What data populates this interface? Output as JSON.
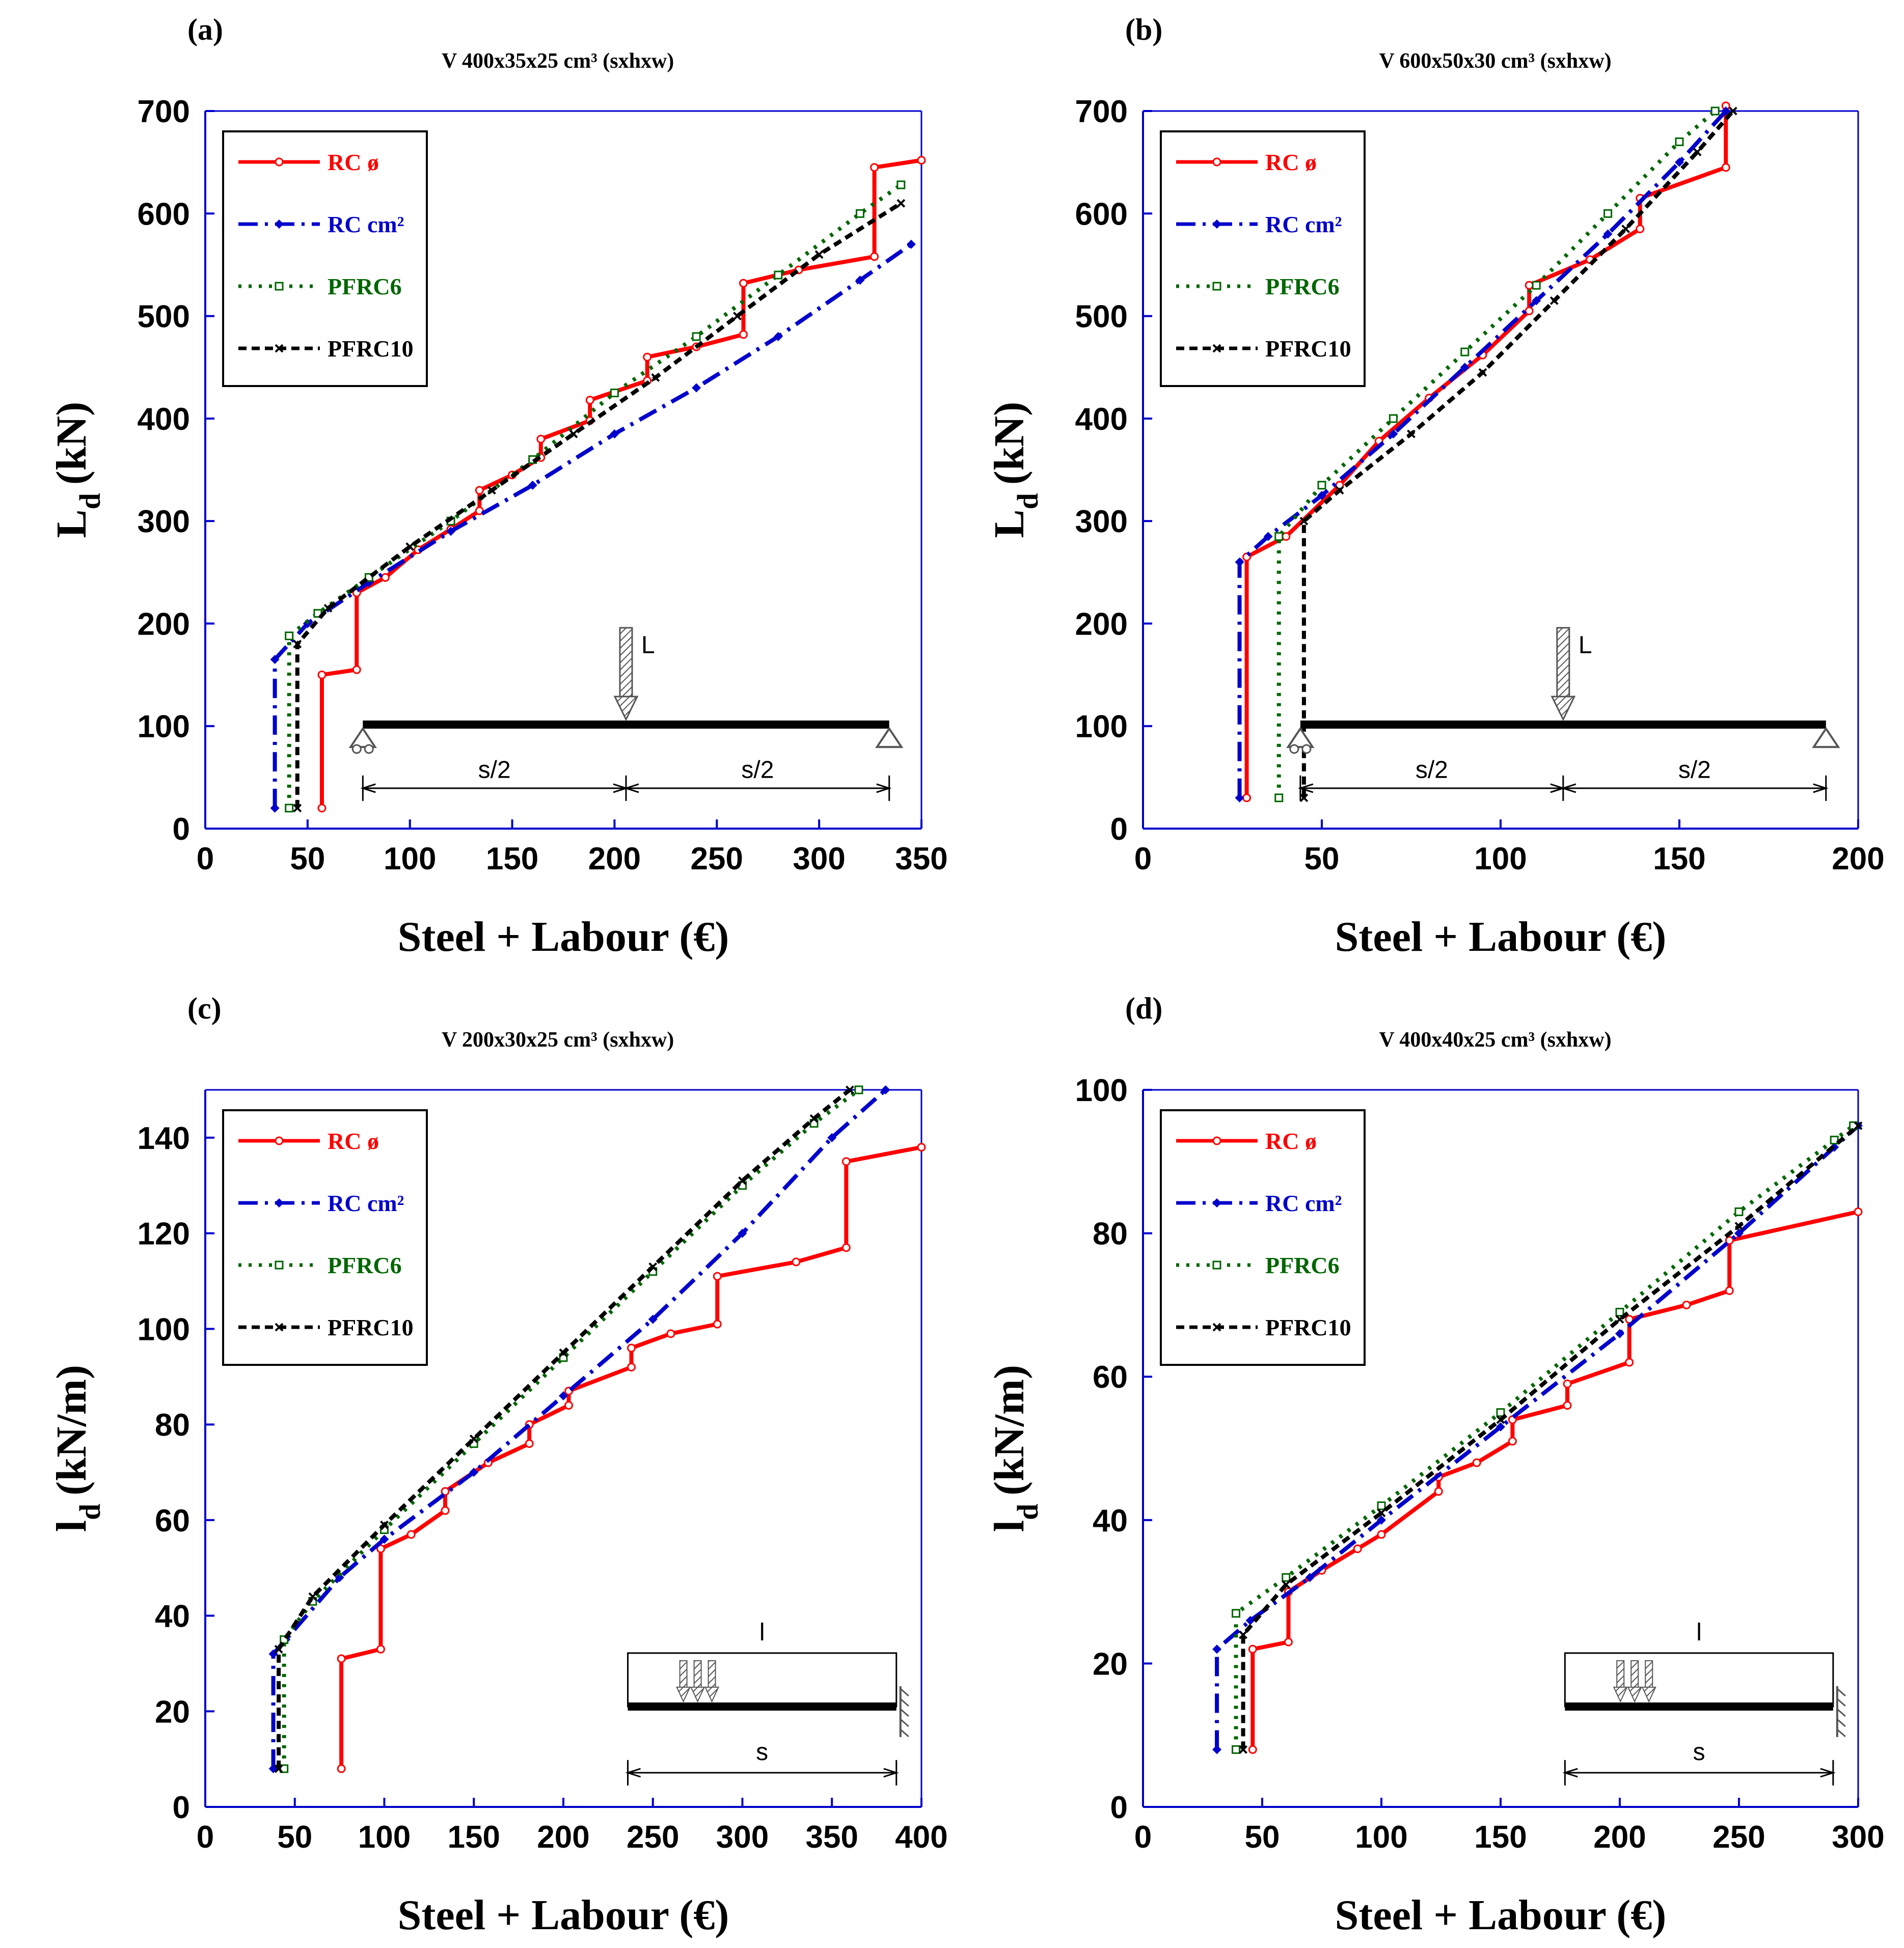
{
  "colors": {
    "rc_phi": "#ff0000",
    "rc_cm2": "#0000cc",
    "pfrc6": "#006600",
    "pfrc10": "#000000"
  },
  "legend": [
    "RC ø",
    "RC cm²",
    "PFRC6",
    "PFRC10"
  ],
  "chart_data": [
    {
      "panel": "(a)",
      "title": "V 400x35x25 cm³ (sxhxw)",
      "type": "line",
      "xlabel": "Steel + Labour (€)",
      "ylabel": "Ld (kN)",
      "ylabel_main": "L",
      "ylabel_sub": "d",
      "ylabel_unit": "(kN)",
      "xlim": [
        0,
        350
      ],
      "ylim": [
        0,
        700
      ],
      "xticks": [
        "0",
        "50",
        "100",
        "150",
        "200",
        "250",
        "300",
        "350"
      ],
      "yticks": [
        "0",
        "100",
        "200",
        "300",
        "400",
        "500",
        "600",
        "700"
      ],
      "diagram": {
        "type": "point-load",
        "load_label": "L",
        "left_span": "s/2",
        "right_span": "s/2"
      },
      "series": [
        {
          "name": "RC ø",
          "points": [
            [
              57,
              20
            ],
            [
              57,
              150
            ],
            [
              74,
              155
            ],
            [
              74,
              230
            ],
            [
              88,
              245
            ],
            [
              104,
              272
            ],
            [
              120,
              292
            ],
            [
              134,
              310
            ],
            [
              134,
              330
            ],
            [
              150,
              345
            ],
            [
              164,
              362
            ],
            [
              164,
              380
            ],
            [
              188,
              398
            ],
            [
              188,
              418
            ],
            [
              216,
              437
            ],
            [
              216,
              460
            ],
            [
              240,
              470
            ],
            [
              263,
              482
            ],
            [
              263,
              532
            ],
            [
              290,
              545
            ],
            [
              327,
              558
            ],
            [
              327,
              645
            ],
            [
              350,
              652
            ]
          ]
        },
        {
          "name": "RC cm²",
          "points": [
            [
              34,
              20
            ],
            [
              34,
              165
            ],
            [
              50,
              200
            ],
            [
              80,
              240
            ],
            [
              120,
              290
            ],
            [
              160,
              335
            ],
            [
              200,
              385
            ],
            [
              240,
              430
            ],
            [
              280,
              480
            ],
            [
              320,
              535
            ],
            [
              345,
              570
            ]
          ]
        },
        {
          "name": "PFRC6",
          "points": [
            [
              41,
              20
            ],
            [
              41,
              188
            ],
            [
              55,
              210
            ],
            [
              80,
              245
            ],
            [
              120,
              300
            ],
            [
              160,
              360
            ],
            [
              200,
              425
            ],
            [
              240,
              480
            ],
            [
              280,
              540
            ],
            [
              320,
              600
            ],
            [
              340,
              628
            ]
          ]
        },
        {
          "name": "PFRC10",
          "points": [
            [
              45,
              20
            ],
            [
              45,
              180
            ],
            [
              60,
              215
            ],
            [
              100,
              275
            ],
            [
              140,
              330
            ],
            [
              180,
              385
            ],
            [
              220,
              440
            ],
            [
              260,
              500
            ],
            [
              300,
              560
            ],
            [
              340,
              610
            ]
          ]
        }
      ]
    },
    {
      "panel": "(b)",
      "title": "V 600x50x30 cm³ (sxhxw)",
      "type": "line",
      "xlabel": "Steel + Labour (€)",
      "ylabel": "Ld (kN)",
      "ylabel_main": "L",
      "ylabel_sub": "d",
      "ylabel_unit": "(kN)",
      "xlim": [
        0,
        200
      ],
      "ylim": [
        0,
        700
      ],
      "xticks": [
        "0",
        "50",
        "100",
        "150",
        "200"
      ],
      "yticks": [
        "0",
        "100",
        "200",
        "300",
        "400",
        "500",
        "600",
        "700"
      ],
      "diagram": {
        "type": "point-load",
        "load_label": "L",
        "left_span": "s/2",
        "right_span": "s/2"
      },
      "series": [
        {
          "name": "RC ø",
          "points": [
            [
              29,
              30
            ],
            [
              29,
              265
            ],
            [
              40,
              285
            ],
            [
              55,
              335
            ],
            [
              66,
              378
            ],
            [
              80,
              420
            ],
            [
              95,
              462
            ],
            [
              108,
              505
            ],
            [
              108,
              530
            ],
            [
              125,
              555
            ],
            [
              139,
              585
            ],
            [
              139,
              615
            ],
            [
              163,
              645
            ],
            [
              163,
              705
            ]
          ]
        },
        {
          "name": "RC cm²",
          "points": [
            [
              27,
              30
            ],
            [
              27,
              260
            ],
            [
              35,
              285
            ],
            [
              50,
              325
            ],
            [
              70,
              385
            ],
            [
              90,
              450
            ],
            [
              110,
              515
            ],
            [
              130,
              580
            ],
            [
              150,
              650
            ],
            [
              163,
              700
            ]
          ]
        },
        {
          "name": "PFRC6",
          "points": [
            [
              38,
              30
            ],
            [
              38,
              285
            ],
            [
              50,
              335
            ],
            [
              70,
              400
            ],
            [
              90,
              465
            ],
            [
              110,
              530
            ],
            [
              130,
              600
            ],
            [
              150,
              670
            ],
            [
              160,
              700
            ]
          ]
        },
        {
          "name": "PFRC10",
          "points": [
            [
              45,
              30
            ],
            [
              45,
              300
            ],
            [
              55,
              330
            ],
            [
              75,
              385
            ],
            [
              95,
              445
            ],
            [
              115,
              515
            ],
            [
              135,
              585
            ],
            [
              155,
              660
            ],
            [
              165,
              700
            ]
          ]
        }
      ]
    },
    {
      "panel": "(c)",
      "title": "V 200x30x25 cm³ (sxhxw)",
      "type": "line",
      "xlabel": "Steel + Labour (€)",
      "ylabel": "ld (kN/m)",
      "ylabel_main": "l",
      "ylabel_sub": "d",
      "ylabel_unit": "(kN/m)",
      "xlim": [
        0,
        400
      ],
      "ylim": [
        0,
        150
      ],
      "xticks": [
        "0",
        "50",
        "100",
        "150",
        "200",
        "250",
        "300",
        "350",
        "400"
      ],
      "yticks": [
        "0",
        "20",
        "40",
        "60",
        "80",
        "100",
        "120",
        "140"
      ],
      "diagram": {
        "type": "distributed-load",
        "load_label": "l",
        "span": "s"
      },
      "series": [
        {
          "name": "RC ø",
          "points": [
            [
              76,
              8
            ],
            [
              76,
              31
            ],
            [
              98,
              33
            ],
            [
              98,
              54
            ],
            [
              115,
              57
            ],
            [
              134,
              62
            ],
            [
              134,
              66
            ],
            [
              158,
              72
            ],
            [
              181,
              76
            ],
            [
              181,
              80
            ],
            [
              203,
              84
            ],
            [
              203,
              87
            ],
            [
              238,
              92
            ],
            [
              238,
              96
            ],
            [
              260,
              99
            ],
            [
              286,
              101
            ],
            [
              286,
              111
            ],
            [
              330,
              114
            ],
            [
              358,
              117
            ],
            [
              358,
              135
            ],
            [
              400,
              138
            ]
          ]
        },
        {
          "name": "RC cm²",
          "points": [
            [
              38,
              8
            ],
            [
              38,
              32
            ],
            [
              45,
              35
            ],
            [
              75,
              48
            ],
            [
              100,
              56
            ],
            [
              150,
              70
            ],
            [
              200,
              86
            ],
            [
              250,
              102
            ],
            [
              300,
              120
            ],
            [
              350,
              140
            ],
            [
              380,
              150
            ]
          ]
        },
        {
          "name": "PFRC6",
          "points": [
            [
              44,
              8
            ],
            [
              44,
              35
            ],
            [
              60,
              43
            ],
            [
              100,
              58
            ],
            [
              150,
              76
            ],
            [
              200,
              94
            ],
            [
              250,
              112
            ],
            [
              300,
              130
            ],
            [
              340,
              143
            ],
            [
              365,
              150
            ]
          ]
        },
        {
          "name": "PFRC10",
          "points": [
            [
              41,
              8
            ],
            [
              41,
              33
            ],
            [
              60,
              44
            ],
            [
              100,
              59
            ],
            [
              150,
              77
            ],
            [
              200,
              95
            ],
            [
              250,
              113
            ],
            [
              300,
              131
            ],
            [
              340,
              144
            ],
            [
              360,
              150
            ]
          ]
        }
      ]
    },
    {
      "panel": "(d)",
      "title": "V 400x40x25 cm³ (sxhxw)",
      "type": "line",
      "xlabel": "Steel + Labour (€)",
      "ylabel": "ld (kN/m)",
      "ylabel_main": "l",
      "ylabel_sub": "d",
      "ylabel_unit": "(kN/m)",
      "xlim": [
        0,
        300
      ],
      "ylim": [
        0,
        100
      ],
      "xticks": [
        "0",
        "50",
        "100",
        "150",
        "200",
        "250",
        "300"
      ],
      "yticks": [
        "0",
        "20",
        "40",
        "60",
        "80",
        "100"
      ],
      "diagram": {
        "type": "distributed-load",
        "load_label": "l",
        "span": "s"
      },
      "series": [
        {
          "name": "RC ø",
          "points": [
            [
              46,
              8
            ],
            [
              46,
              22
            ],
            [
              61,
              23
            ],
            [
              61,
              30
            ],
            [
              75,
              33
            ],
            [
              90,
              36
            ],
            [
              100,
              38
            ],
            [
              124,
              44
            ],
            [
              124,
              46
            ],
            [
              140,
              48
            ],
            [
              155,
              51
            ],
            [
              155,
              54
            ],
            [
              178,
              56
            ],
            [
              178,
              59
            ],
            [
              204,
              62
            ],
            [
              204,
              68
            ],
            [
              228,
              70
            ],
            [
              246,
              72
            ],
            [
              246,
              79
            ],
            [
              300,
              83
            ]
          ]
        },
        {
          "name": "RC cm²",
          "points": [
            [
              31,
              8
            ],
            [
              31,
              22
            ],
            [
              45,
              26
            ],
            [
              70,
              32
            ],
            [
              100,
              40
            ],
            [
              150,
              53
            ],
            [
              200,
              66
            ],
            [
              250,
              80
            ],
            [
              290,
              92
            ],
            [
              300,
              95
            ]
          ]
        },
        {
          "name": "PFRC6",
          "points": [
            [
              39,
              8
            ],
            [
              39,
              27
            ],
            [
              60,
              32
            ],
            [
              100,
              42
            ],
            [
              150,
              55
            ],
            [
              200,
              69
            ],
            [
              250,
              83
            ],
            [
              290,
              93
            ],
            [
              298,
              95
            ]
          ]
        },
        {
          "name": "PFRC10",
          "points": [
            [
              42,
              8
            ],
            [
              42,
              24
            ],
            [
              60,
              31
            ],
            [
              100,
              41
            ],
            [
              150,
              54
            ],
            [
              200,
              68
            ],
            [
              250,
              81
            ],
            [
              300,
              95
            ]
          ]
        }
      ]
    }
  ]
}
